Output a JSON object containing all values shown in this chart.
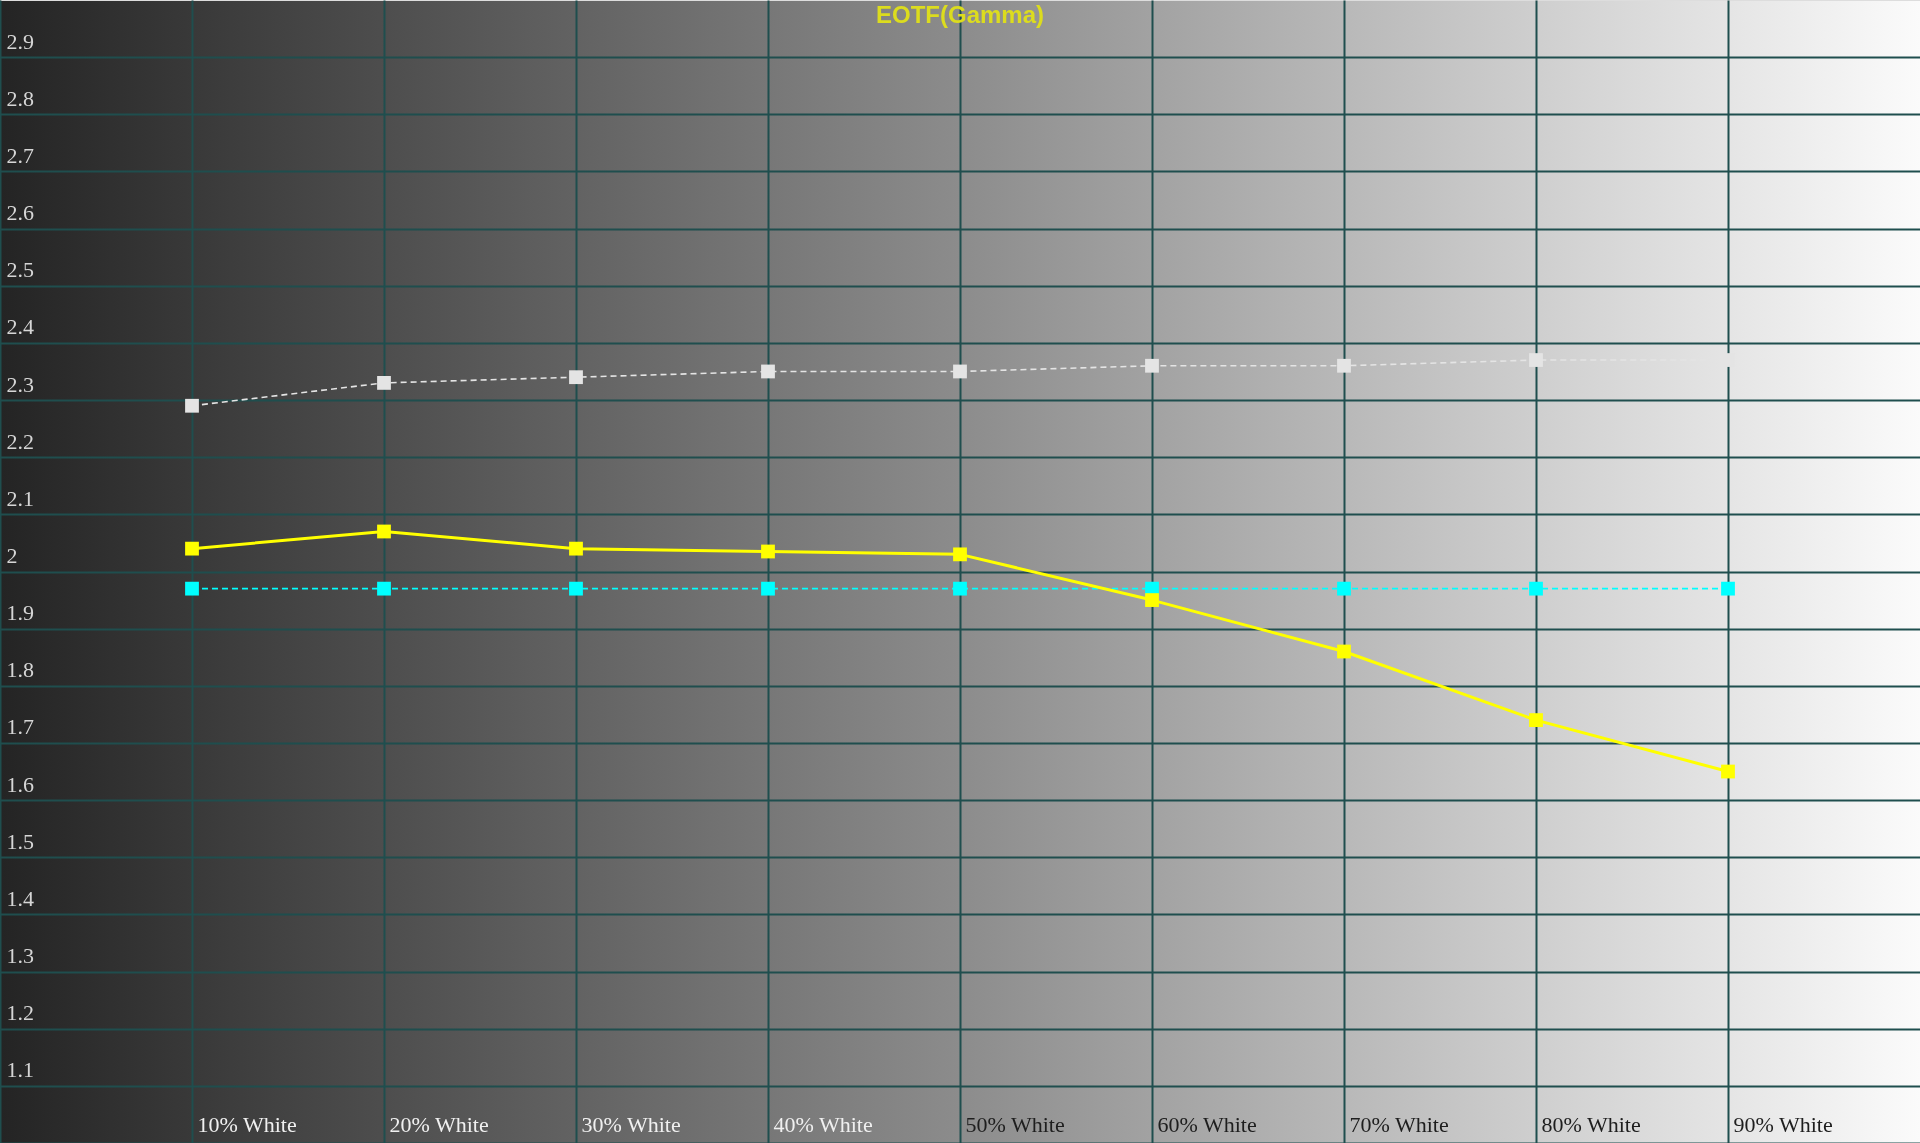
{
  "chart_data": {
    "type": "line",
    "title": "EOTF(Gamma)",
    "categories": [
      "10% White",
      "20% White",
      "30% White",
      "40% White",
      "50% White",
      "60% White",
      "70% White",
      "80% White",
      "90% White"
    ],
    "series": [
      {
        "color": "#e4e4e4",
        "line_style": "dashed",
        "values": [
          2.29,
          2.33,
          2.34,
          2.35,
          2.35,
          2.36,
          2.36,
          2.37,
          2.37
        ]
      },
      {
        "color": "#00ffff",
        "line_style": "dashed",
        "values": [
          1.97,
          1.97,
          1.97,
          1.97,
          1.97,
          1.97,
          1.97,
          1.97,
          1.97
        ]
      },
      {
        "color": "#ffff00",
        "values": [
          2.04,
          2.07,
          2.04,
          2.035,
          2.03,
          1.95,
          1.86,
          1.74,
          1.65
        ]
      }
    ],
    "ylim": [
      1,
      3
    ],
    "yticks": [
      1.1,
      1.2,
      1.3,
      1.4,
      1.5,
      1.6,
      1.7,
      1.8,
      1.9,
      2,
      2.1,
      2.2,
      2.3,
      2.4,
      2.5,
      2.6,
      2.7,
      2.8,
      2.9
    ],
    "grid": true,
    "marker": "square",
    "line_style": "solid"
  }
}
